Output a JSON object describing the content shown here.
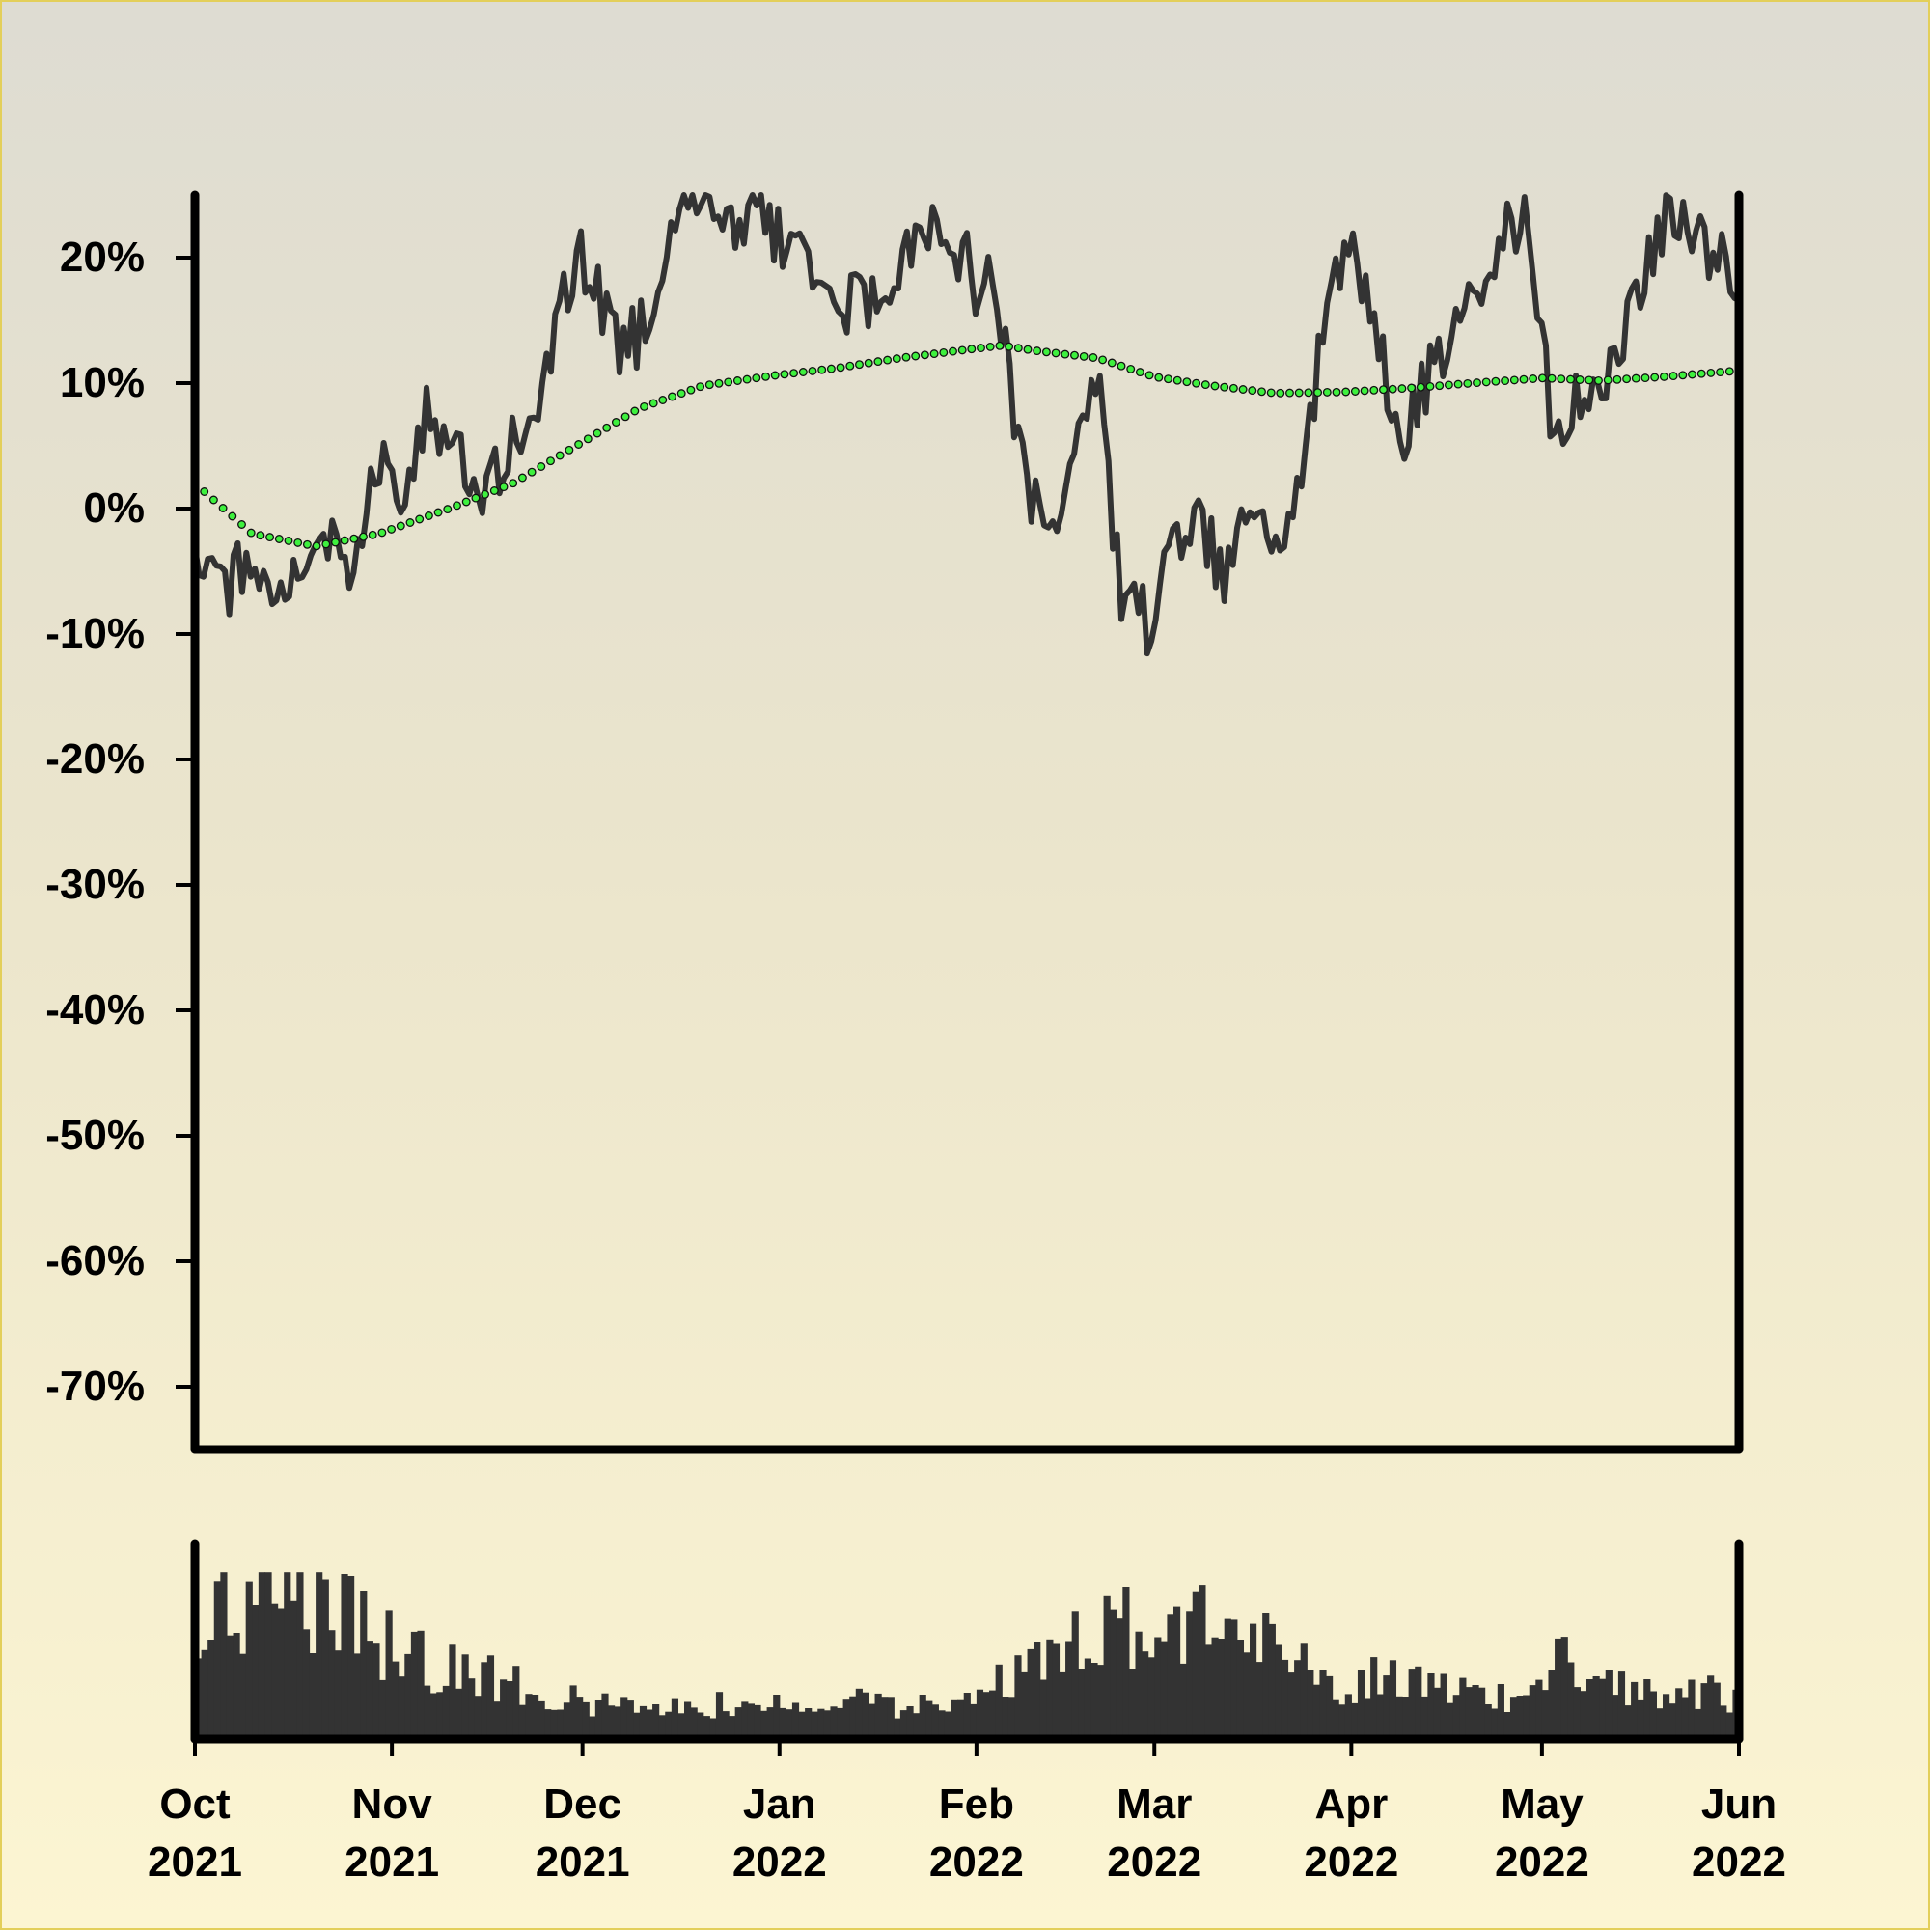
{
  "colors": {
    "price_line": "#333333",
    "moving_average_fill": "#3ef03e",
    "moving_average_stroke": "#111111",
    "volume_bars": "#333333",
    "axes": "#000000",
    "border": "#e3cf5a"
  },
  "chart_data": [
    {
      "type": "line",
      "panel": "price",
      "ylabel": "",
      "ylim": [
        -75,
        25
      ],
      "y_tick_values": [
        20,
        10,
        0,
        -10,
        -20,
        -30,
        -40,
        -50,
        -60,
        -70
      ],
      "y_tick_labels": [
        "20%",
        "10%",
        "0%",
        "-10%",
        "-20%",
        "-30%",
        "-40%",
        "-50%",
        "-60%",
        "-70%"
      ],
      "grid": false,
      "legend": "none",
      "x_start": "2021-10-01",
      "x_end": "2022-06-01",
      "series": [
        {
          "style": "solid",
          "x": [
            "2021-10-01",
            "2021-10-06",
            "2021-10-10",
            "2021-10-14",
            "2021-10-18",
            "2021-10-22",
            "2021-10-26",
            "2021-10-30",
            "2021-11-03",
            "2021-11-07",
            "2021-11-11",
            "2021-11-15",
            "2021-11-19",
            "2021-11-23",
            "2021-11-27",
            "2021-12-01",
            "2021-12-06",
            "2021-12-10",
            "2021-12-15",
            "2021-12-20",
            "2021-12-25",
            "2021-12-29",
            "2022-01-03",
            "2022-01-08",
            "2022-01-13",
            "2022-01-18",
            "2022-01-23",
            "2022-01-27",
            "2022-02-01",
            "2022-02-04",
            "2022-02-08",
            "2022-02-12",
            "2022-02-16",
            "2022-02-20",
            "2022-02-24",
            "2022-02-28",
            "2022-03-04",
            "2022-03-08",
            "2022-03-12",
            "2022-03-16",
            "2022-03-20",
            "2022-03-24",
            "2022-03-28",
            "2022-04-01",
            "2022-04-05",
            "2022-04-09",
            "2022-04-13",
            "2022-04-17",
            "2022-04-21",
            "2022-04-25",
            "2022-04-29",
            "2022-05-03",
            "2022-05-07",
            "2022-05-11",
            "2022-05-15",
            "2022-05-19",
            "2022-05-23",
            "2022-05-27",
            "2022-06-01"
          ],
          "y": [
            -3,
            -6,
            -4,
            -7,
            -5,
            -2,
            -4,
            3,
            1,
            8,
            4,
            0,
            5,
            7,
            15,
            20,
            13,
            14,
            23,
            24,
            22,
            24,
            20,
            17,
            16,
            18,
            21,
            23,
            18,
            17,
            5,
            -4,
            3,
            10,
            -8,
            -9,
            -3,
            -2,
            -5,
            0,
            -2,
            2,
            16,
            23,
            13,
            5,
            10,
            14,
            16,
            22,
            23,
            4,
            9,
            11,
            16,
            22,
            24,
            20,
            19
          ]
        },
        {
          "style": "dotted-markers",
          "x": [
            "2021-10-01",
            "2021-10-10",
            "2021-10-20",
            "2021-10-30",
            "2021-11-10",
            "2021-11-20",
            "2021-11-30",
            "2021-12-10",
            "2021-12-20",
            "2021-12-31",
            "2022-01-10",
            "2022-01-20",
            "2022-01-31",
            "2022-02-05",
            "2022-02-10",
            "2022-02-20",
            "2022-03-01",
            "2022-03-10",
            "2022-03-20",
            "2022-03-31",
            "2022-04-10",
            "2022-04-20",
            "2022-05-01",
            "2022-05-10",
            "2022-05-20",
            "2022-06-01"
          ],
          "y": [
            2,
            -2,
            -3,
            -2,
            0,
            2,
            5,
            8,
            9.8,
            10.6,
            11.2,
            12,
            12.7,
            13,
            12.6,
            12,
            10.5,
            9.8,
            9.2,
            9.3,
            9.6,
            10,
            10.4,
            10.2,
            10.5,
            11
          ]
        }
      ]
    },
    {
      "type": "bar",
      "panel": "volume",
      "x_start": "2021-10-01",
      "x_end": "2022-06-01",
      "x_tick_months": [
        "Oct",
        "Nov",
        "Dec",
        "Jan",
        "Feb",
        "Mar",
        "Apr",
        "May",
        "Jun"
      ],
      "x_tick_years": [
        "2021",
        "2021",
        "2021",
        "2022",
        "2022",
        "2022",
        "2022",
        "2022",
        "2022"
      ],
      "x_tick_dates": [
        "2021-10-01",
        "2021-11-01",
        "2021-12-01",
        "2022-01-01",
        "2022-02-01",
        "2022-03-01",
        "2022-04-01",
        "2022-05-01",
        "2022-06-01"
      ],
      "volume_profile": [
        {
          "date": "2021-10-01",
          "value": 0.7
        },
        {
          "date": "2021-10-15",
          "value": 0.82
        },
        {
          "date": "2021-10-25",
          "value": 0.68
        },
        {
          "date": "2021-11-05",
          "value": 0.45
        },
        {
          "date": "2021-11-15",
          "value": 0.38
        },
        {
          "date": "2021-11-25",
          "value": 0.24
        },
        {
          "date": "2021-12-10",
          "value": 0.18
        },
        {
          "date": "2021-12-25",
          "value": 0.2
        },
        {
          "date": "2022-01-10",
          "value": 0.22
        },
        {
          "date": "2022-01-25",
          "value": 0.18
        },
        {
          "date": "2022-02-05",
          "value": 0.35
        },
        {
          "date": "2022-02-15",
          "value": 0.55
        },
        {
          "date": "2022-02-25",
          "value": 0.65
        },
        {
          "date": "2022-03-08",
          "value": 0.66
        },
        {
          "date": "2022-03-20",
          "value": 0.55
        },
        {
          "date": "2022-03-30",
          "value": 0.32
        },
        {
          "date": "2022-04-10",
          "value": 0.38
        },
        {
          "date": "2022-04-25",
          "value": 0.22
        },
        {
          "date": "2022-05-05",
          "value": 0.48
        },
        {
          "date": "2022-05-15",
          "value": 0.3
        },
        {
          "date": "2022-06-01",
          "value": 0.25
        }
      ]
    }
  ]
}
